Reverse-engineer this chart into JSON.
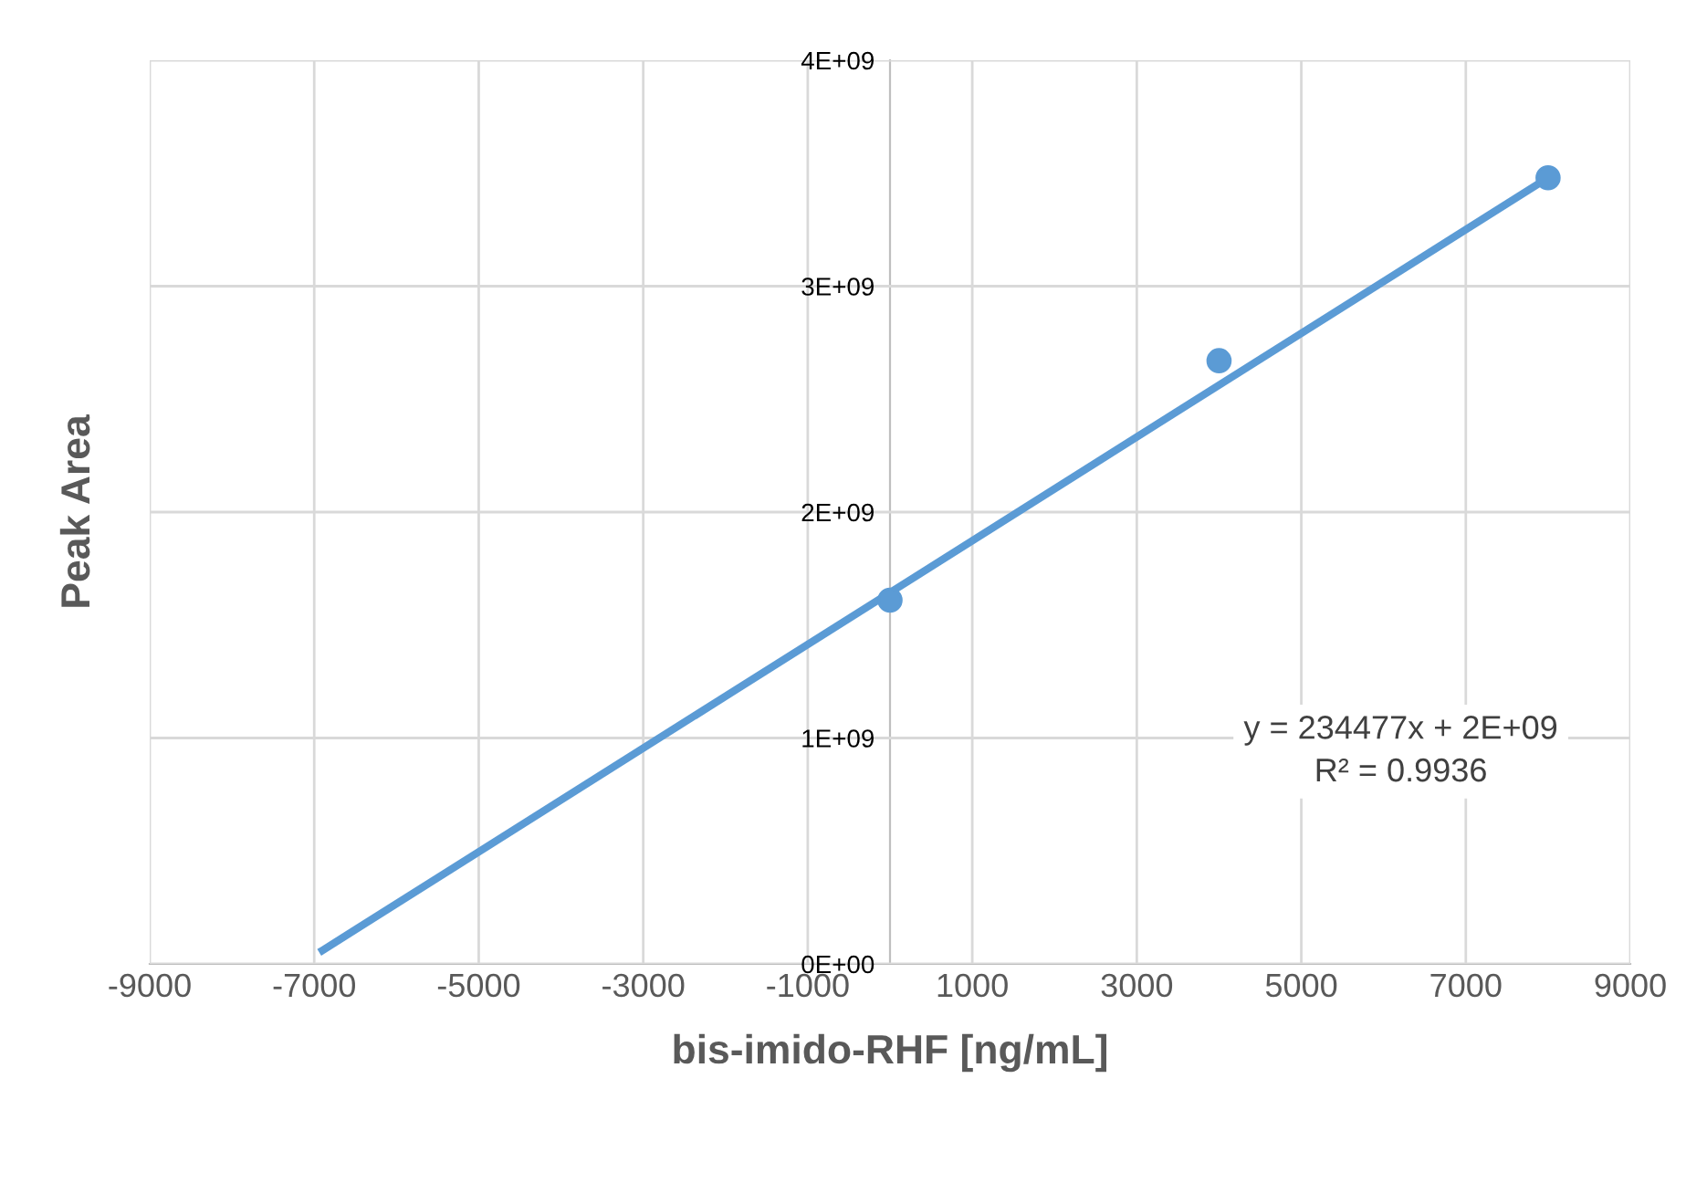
{
  "chart_data": {
    "type": "scatter",
    "xlabel": "bis-imido-RHF [ng/mL]",
    "ylabel": "Peak Area",
    "xlim": [
      -9000,
      9000
    ],
    "xticks": [
      -9000,
      -7000,
      -5000,
      -3000,
      -1000,
      1000,
      3000,
      5000,
      7000,
      9000
    ],
    "ylim": [
      0,
      4000000000
    ],
    "yticks": [
      {
        "value": 0,
        "label": "0E+00"
      },
      {
        "value": 1000000000,
        "label": "1E+09"
      },
      {
        "value": 2000000000,
        "label": "2E+09"
      },
      {
        "value": 3000000000,
        "label": "3E+09"
      },
      {
        "value": 4000000000,
        "label": "4E+09"
      }
    ],
    "grid": true,
    "legend": false,
    "marker": "circle",
    "series": [
      {
        "color": "#5b9bd5",
        "x": [
          0,
          4000,
          8000
        ],
        "values": [
          1610000000,
          2670000000,
          3480000000
        ]
      },
      {
        "type": "line",
        "color": "#5b9bd5",
        "line_style": "solid",
        "marker": "none",
        "x": [
          -6900,
          8000
        ],
        "values": [
          60000000,
          3480000000
        ]
      }
    ],
    "annotations": [
      "y = 234477x + 2E+09\nR² = 0.9936"
    ]
  }
}
